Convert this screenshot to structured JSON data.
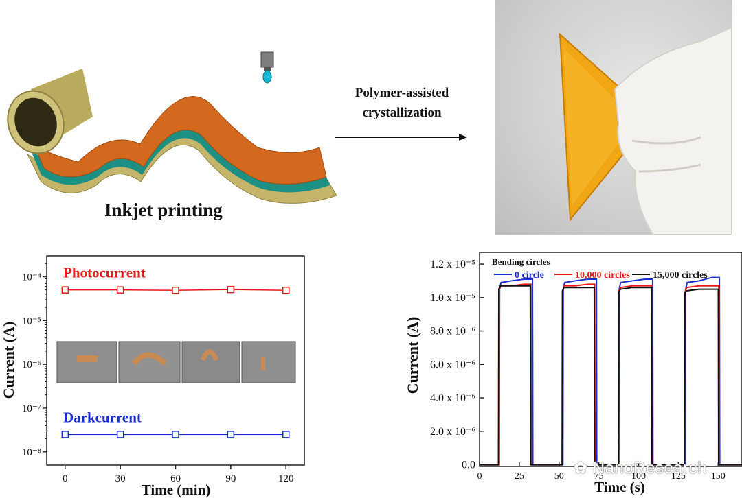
{
  "top": {
    "inkjet_label": "Inkjet printing",
    "arrow_label_line1": "Polymer-assisted",
    "arrow_label_line2": "crystallization"
  },
  "watermark": "NanoResearch",
  "colors": {
    "red": "#e8191b",
    "blue": "#1b2fd0",
    "black": "#111111",
    "film": "#f0a615"
  },
  "chart_data": [
    {
      "type": "line",
      "xlabel": "Time (min)",
      "ylabel": "Current (A)",
      "yscale": "log",
      "xlim": [
        -10,
        130
      ],
      "ylim": [
        5e-09,
        0.0003
      ],
      "xticks": [
        0,
        30,
        60,
        90,
        120
      ],
      "yticks": [
        1e-08,
        1e-07,
        1e-06,
        1e-05,
        0.0001
      ],
      "ytick_labels": [
        "10⁻⁸",
        "10⁻⁷",
        "10⁻⁶",
        "10⁻⁵",
        "10⁻⁴"
      ],
      "marker": "open-square",
      "series": [
        {
          "name": "Photocurrent",
          "color": "#e8191b",
          "x": [
            0,
            30,
            60,
            90,
            120
          ],
          "y": [
            5e-05,
            5e-05,
            4.9e-05,
            5.1e-05,
            4.9e-05
          ]
        },
        {
          "name": "Darkcurrent",
          "color": "#1b2fd0",
          "x": [
            0,
            30,
            60,
            90,
            120
          ],
          "y": [
            2.5e-08,
            2.5e-08,
            2.5e-08,
            2.5e-08,
            2.5e-08
          ]
        }
      ]
    },
    {
      "type": "line",
      "xlabel": "Time (s)",
      "ylabel": "Current (A)",
      "xlim": [
        0,
        165
      ],
      "ylim": [
        -1e-07,
        1.27e-05
      ],
      "xticks": [
        0,
        25,
        50,
        75,
        100,
        125,
        150
      ],
      "yticks": [
        0.0,
        2e-06,
        4e-06,
        6e-06,
        8e-06,
        1e-05,
        1.2e-05
      ],
      "ytick_labels": [
        "0.0",
        "2.0 x 10⁻⁶",
        "4.0 x 10⁻⁶",
        "6.0 x 10⁻⁶",
        "8.0 x 10⁻⁶",
        "1.0 x 10⁻⁵",
        "1.2 x 10⁻⁵"
      ],
      "legend_title": "Bending circles",
      "legend_position": "top",
      "series": [
        {
          "name": "0 circle",
          "color": "#1b2fd0",
          "x": [
            0,
            12.4,
            12.6,
            13.5,
            20,
            28,
            33.3,
            33.5,
            50,
            52.4,
            52.6,
            53.5,
            60,
            68,
            73.5,
            73.7,
            87.6,
            87.8,
            88.7,
            96,
            104,
            108.8,
            109,
            127,
            129.4,
            129.6,
            130.5,
            138,
            146,
            150.8,
            151,
            165
          ],
          "y": [
            0,
            0,
            1.05e-05,
            1.09e-05,
            1.1e-05,
            1.11e-05,
            1.11e-05,
            0,
            0,
            0,
            1.05e-05,
            1.09e-05,
            1.1e-05,
            1.11e-05,
            1.11e-05,
            0,
            0,
            1.05e-05,
            1.09e-05,
            1.1e-05,
            1.11e-05,
            1.11e-05,
            0,
            0,
            0,
            1.05e-05,
            1.09e-05,
            1.1e-05,
            1.12e-05,
            1.12e-05,
            0,
            0
          ]
        },
        {
          "name": "10,000 circles",
          "color": "#e8191b",
          "x": [
            0,
            12.1,
            12.3,
            13.3,
            20,
            28,
            32.3,
            32.5,
            50,
            52.1,
            52.3,
            53.3,
            60,
            68,
            72.4,
            72.6,
            87.4,
            87.6,
            88.6,
            96,
            104,
            108.4,
            108.6,
            127,
            129.1,
            129.3,
            130.3,
            138,
            146,
            150.4,
            150.6,
            165
          ],
          "y": [
            0,
            0,
            1.04e-05,
            1.07e-05,
            1.07e-05,
            1.08e-05,
            1.08e-05,
            0,
            0,
            0,
            1.04e-05,
            1.07e-05,
            1.07e-05,
            1.08e-05,
            1.08e-05,
            0,
            0,
            1.04e-05,
            1.06e-05,
            1.07e-05,
            1.07e-05,
            1.07e-05,
            0,
            0,
            0,
            1.04e-05,
            1.06e-05,
            1.07e-05,
            1.07e-05,
            1.07e-05,
            0,
            0
          ]
        },
        {
          "name": "15,000 circles",
          "color": "#111111",
          "x": [
            0,
            11.9,
            12.1,
            13.1,
            20,
            28,
            31.9,
            32.1,
            50,
            51.9,
            52.1,
            53.1,
            60,
            68,
            72.1,
            72.3,
            87.3,
            87.5,
            88.5,
            96,
            104,
            108.2,
            108.4,
            127,
            128.9,
            129.1,
            130.1,
            138,
            146,
            150.1,
            150.3,
            165
          ],
          "y": [
            0,
            0,
            1.05e-05,
            1.07e-05,
            1.07e-05,
            1.07e-05,
            1.07e-05,
            0,
            0,
            0,
            1.04e-05,
            1.06e-05,
            1.06e-05,
            1.06e-05,
            1.06e-05,
            0,
            0,
            1.03e-05,
            1.05e-05,
            1.06e-05,
            1.06e-05,
            1.06e-05,
            0,
            0,
            0,
            1.03e-05,
            1.04e-05,
            1.05e-05,
            1.05e-05,
            1.05e-05,
            0,
            0
          ]
        }
      ]
    }
  ]
}
